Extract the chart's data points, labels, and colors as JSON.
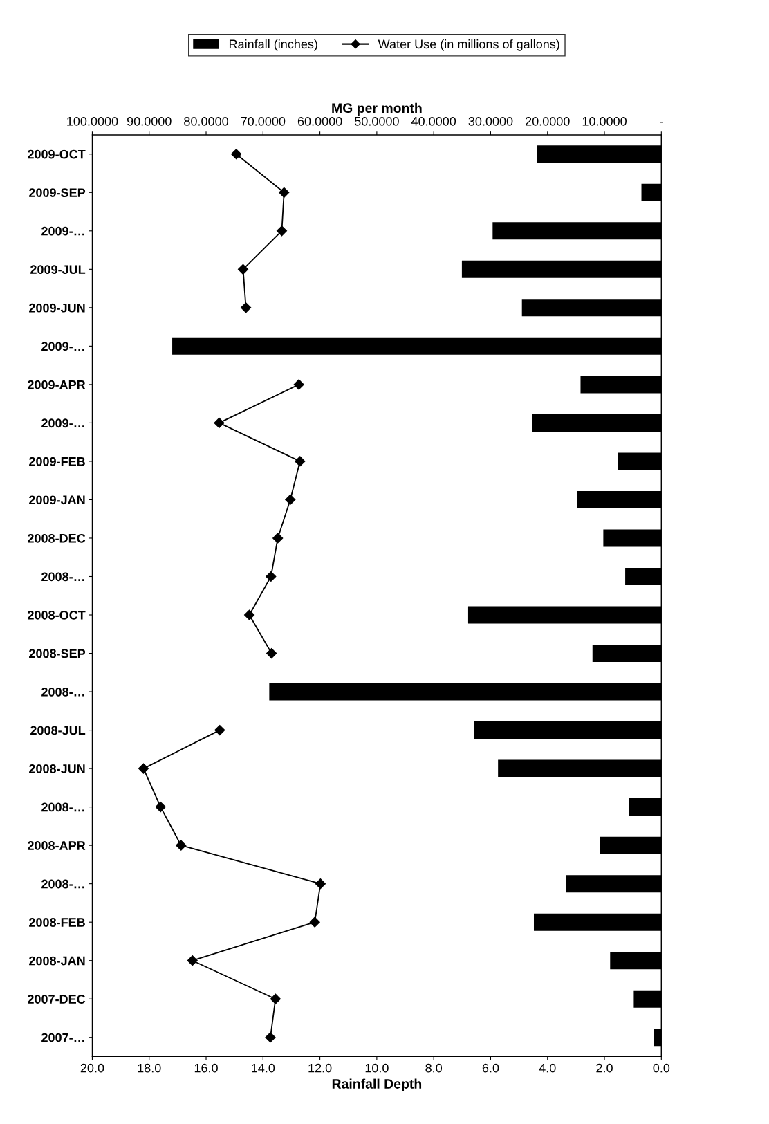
{
  "chart_data": {
    "type": "bar",
    "orientation": "horizontal",
    "categories": [
      "2009-OCT",
      "2009-SEP",
      "2009-…",
      "2009-JUL",
      "2009-JUN",
      "2009-…",
      "2009-APR",
      "2009-…",
      "2009-FEB",
      "2009-JAN",
      "2008-DEC",
      "2008-…",
      "2008-OCT",
      "2008-SEP",
      "2008-…",
      "2008-JUL",
      "2008-JUN",
      "2008-…",
      "2008-APR",
      "2008-…",
      "2008-FEB",
      "2008-JAN",
      "2007-DEC",
      "2007-…"
    ],
    "series": [
      {
        "name": "Rainfall (inches)",
        "color": "#000000",
        "values": [
          4.37,
          0.7,
          5.93,
          7.01,
          4.9,
          17.19,
          2.84,
          4.55,
          1.52,
          2.95,
          2.04,
          1.27,
          6.79,
          2.42,
          13.78,
          6.57,
          5.74,
          1.14,
          2.15,
          3.34,
          4.48,
          1.8,
          0.97,
          0.26
        ]
      },
      {
        "name": "Water Use (in millions of gallons)",
        "type": "line",
        "axis": "x2",
        "color": "#000000",
        "marker": "diamond",
        "line_style": "solid",
        "values": [
          74.7,
          66.3,
          66.7,
          73.5,
          73.0,
          null,
          63.7,
          77.7,
          63.5,
          65.2,
          67.4,
          68.6,
          72.4,
          68.5,
          null,
          77.6,
          91.0,
          88.0,
          84.4,
          59.9,
          60.9,
          82.4,
          67.8,
          68.7
        ]
      }
    ],
    "xlabel": "Rainfall Depth",
    "x2label": "MG per month",
    "xlim": [
      20,
      0
    ],
    "xticks": [
      {
        "value": 20,
        "label": "20.0"
      },
      {
        "value": 18,
        "label": "18.0"
      },
      {
        "value": 16,
        "label": "16.0"
      },
      {
        "value": 14,
        "label": "14.0"
      },
      {
        "value": 12,
        "label": "12.0"
      },
      {
        "value": 10,
        "label": "10.0"
      },
      {
        "value": 8,
        "label": "8.0"
      },
      {
        "value": 6,
        "label": "6.0"
      },
      {
        "value": 4,
        "label": "4.0"
      },
      {
        "value": 2,
        "label": "2.0"
      },
      {
        "value": 0,
        "label": "0.0"
      }
    ],
    "x2lim": [
      100,
      0
    ],
    "x2ticks": [
      {
        "value": 100,
        "label": "100.0000"
      },
      {
        "value": 90,
        "label": "90.0000"
      },
      {
        "value": 80,
        "label": "80.0000"
      },
      {
        "value": 70,
        "label": "70.0000"
      },
      {
        "value": 60,
        "label": "60.0000"
      },
      {
        "value": 50,
        "label": "50.0000"
      },
      {
        "value": 40,
        "label": "40.0000"
      },
      {
        "value": 30,
        "label": "30.0000"
      },
      {
        "value": 20,
        "label": "20.0000"
      },
      {
        "value": 10,
        "label": "10.0000"
      },
      {
        "value": 0,
        "label": "-"
      }
    ],
    "legend": "top",
    "grid": false
  }
}
